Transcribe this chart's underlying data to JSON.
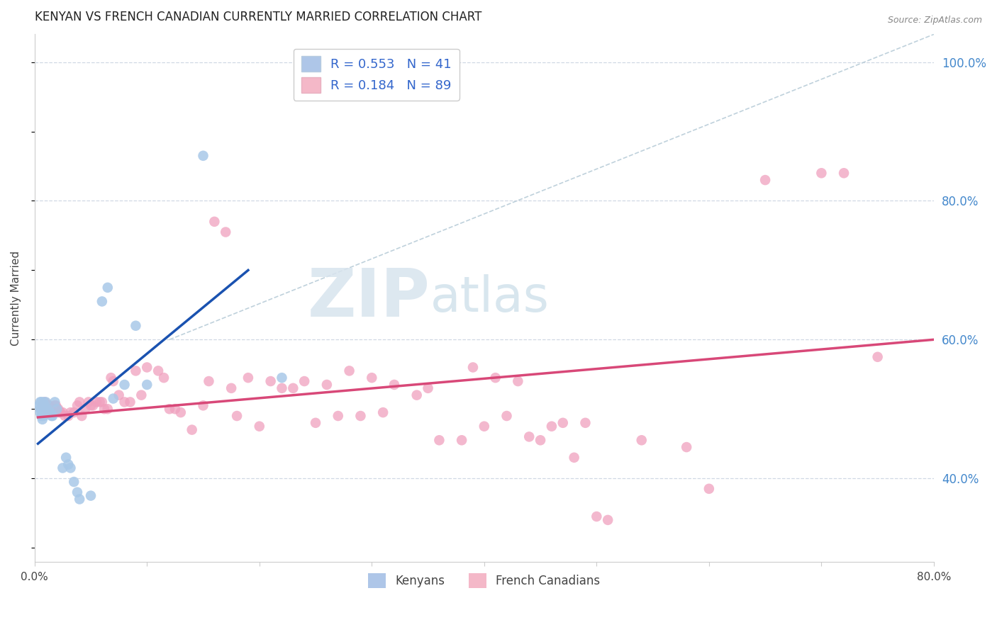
{
  "title": "KENYAN VS FRENCH CANADIAN CURRENTLY MARRIED CORRELATION CHART",
  "source": "Source: ZipAtlas.com",
  "ylabel": "Currently Married",
  "x_min": 0.0,
  "x_max": 0.8,
  "y_min": 0.28,
  "y_max": 1.04,
  "y_ticks": [
    0.4,
    0.6,
    0.8,
    1.0
  ],
  "y_tick_labels": [
    "40.0%",
    "60.0%",
    "80.0%",
    "100.0%"
  ],
  "x_ticks": [
    0.0,
    0.1,
    0.2,
    0.3,
    0.4,
    0.5,
    0.6,
    0.7,
    0.8
  ],
  "x_tick_labels": [
    "0.0%",
    "",
    "",
    "",
    "",
    "",
    "",
    "",
    "80.0%"
  ],
  "kenyan_color": "#a8c8e8",
  "french_color": "#f0a0be",
  "kenyan_trend_color": "#1a52b0",
  "french_trend_color": "#d84878",
  "ref_line_color": "#b8ccd8",
  "watermark_zip": "ZIP",
  "watermark_atlas": "atlas",
  "background_color": "#ffffff",
  "grid_color": "#d0d8e4",
  "kenyan_scatter": [
    [
      0.004,
      0.505
    ],
    [
      0.005,
      0.51
    ],
    [
      0.005,
      0.5
    ],
    [
      0.005,
      0.495
    ],
    [
      0.006,
      0.51
    ],
    [
      0.006,
      0.5
    ],
    [
      0.006,
      0.49
    ],
    [
      0.007,
      0.505
    ],
    [
      0.007,
      0.495
    ],
    [
      0.007,
      0.485
    ],
    [
      0.008,
      0.51
    ],
    [
      0.008,
      0.5
    ],
    [
      0.008,
      0.49
    ],
    [
      0.009,
      0.505
    ],
    [
      0.009,
      0.495
    ],
    [
      0.01,
      0.51
    ],
    [
      0.01,
      0.5
    ],
    [
      0.011,
      0.5
    ],
    [
      0.012,
      0.5
    ],
    [
      0.013,
      0.495
    ],
    [
      0.014,
      0.495
    ],
    [
      0.015,
      0.49
    ],
    [
      0.016,
      0.49
    ],
    [
      0.018,
      0.51
    ],
    [
      0.02,
      0.5
    ],
    [
      0.025,
      0.415
    ],
    [
      0.028,
      0.43
    ],
    [
      0.03,
      0.42
    ],
    [
      0.032,
      0.415
    ],
    [
      0.035,
      0.395
    ],
    [
      0.038,
      0.38
    ],
    [
      0.04,
      0.37
    ],
    [
      0.05,
      0.375
    ],
    [
      0.06,
      0.655
    ],
    [
      0.065,
      0.675
    ],
    [
      0.07,
      0.515
    ],
    [
      0.08,
      0.535
    ],
    [
      0.09,
      0.62
    ],
    [
      0.1,
      0.535
    ],
    [
      0.15,
      0.865
    ],
    [
      0.22,
      0.545
    ]
  ],
  "french_scatter": [
    [
      0.007,
      0.505
    ],
    [
      0.009,
      0.51
    ],
    [
      0.01,
      0.5
    ],
    [
      0.011,
      0.5
    ],
    [
      0.012,
      0.505
    ],
    [
      0.013,
      0.505
    ],
    [
      0.014,
      0.5
    ],
    [
      0.015,
      0.5
    ],
    [
      0.016,
      0.495
    ],
    [
      0.017,
      0.5
    ],
    [
      0.018,
      0.505
    ],
    [
      0.019,
      0.505
    ],
    [
      0.02,
      0.5
    ],
    [
      0.021,
      0.5
    ],
    [
      0.022,
      0.495
    ],
    [
      0.023,
      0.495
    ],
    [
      0.025,
      0.495
    ],
    [
      0.027,
      0.49
    ],
    [
      0.03,
      0.49
    ],
    [
      0.032,
      0.495
    ],
    [
      0.035,
      0.495
    ],
    [
      0.038,
      0.505
    ],
    [
      0.04,
      0.51
    ],
    [
      0.042,
      0.49
    ],
    [
      0.045,
      0.5
    ],
    [
      0.048,
      0.51
    ],
    [
      0.05,
      0.505
    ],
    [
      0.052,
      0.505
    ],
    [
      0.055,
      0.51
    ],
    [
      0.058,
      0.51
    ],
    [
      0.06,
      0.51
    ],
    [
      0.062,
      0.5
    ],
    [
      0.065,
      0.5
    ],
    [
      0.068,
      0.545
    ],
    [
      0.07,
      0.54
    ],
    [
      0.075,
      0.52
    ],
    [
      0.08,
      0.51
    ],
    [
      0.085,
      0.51
    ],
    [
      0.09,
      0.555
    ],
    [
      0.095,
      0.52
    ],
    [
      0.1,
      0.56
    ],
    [
      0.11,
      0.555
    ],
    [
      0.115,
      0.545
    ],
    [
      0.12,
      0.5
    ],
    [
      0.125,
      0.5
    ],
    [
      0.13,
      0.495
    ],
    [
      0.14,
      0.47
    ],
    [
      0.15,
      0.505
    ],
    [
      0.155,
      0.54
    ],
    [
      0.16,
      0.77
    ],
    [
      0.17,
      0.755
    ],
    [
      0.175,
      0.53
    ],
    [
      0.18,
      0.49
    ],
    [
      0.19,
      0.545
    ],
    [
      0.2,
      0.475
    ],
    [
      0.21,
      0.54
    ],
    [
      0.22,
      0.53
    ],
    [
      0.23,
      0.53
    ],
    [
      0.24,
      0.54
    ],
    [
      0.25,
      0.48
    ],
    [
      0.26,
      0.535
    ],
    [
      0.27,
      0.49
    ],
    [
      0.28,
      0.555
    ],
    [
      0.29,
      0.49
    ],
    [
      0.3,
      0.545
    ],
    [
      0.31,
      0.495
    ],
    [
      0.32,
      0.535
    ],
    [
      0.34,
      0.52
    ],
    [
      0.35,
      0.53
    ],
    [
      0.36,
      0.455
    ],
    [
      0.38,
      0.455
    ],
    [
      0.39,
      0.56
    ],
    [
      0.4,
      0.475
    ],
    [
      0.41,
      0.545
    ],
    [
      0.42,
      0.49
    ],
    [
      0.43,
      0.54
    ],
    [
      0.44,
      0.46
    ],
    [
      0.45,
      0.455
    ],
    [
      0.46,
      0.475
    ],
    [
      0.47,
      0.48
    ],
    [
      0.48,
      0.43
    ],
    [
      0.49,
      0.48
    ],
    [
      0.5,
      0.345
    ],
    [
      0.51,
      0.34
    ],
    [
      0.54,
      0.455
    ],
    [
      0.58,
      0.445
    ],
    [
      0.6,
      0.385
    ],
    [
      0.65,
      0.83
    ],
    [
      0.7,
      0.84
    ],
    [
      0.72,
      0.84
    ],
    [
      0.75,
      0.575
    ]
  ],
  "kenyan_line_x": [
    0.003,
    0.19
  ],
  "kenyan_line_y": [
    0.45,
    0.7
  ],
  "french_line_x": [
    0.003,
    0.8
  ],
  "french_line_y": [
    0.488,
    0.6
  ],
  "diag_line_x": [
    0.12,
    0.8
  ],
  "diag_line_y": [
    0.6,
    1.04
  ]
}
